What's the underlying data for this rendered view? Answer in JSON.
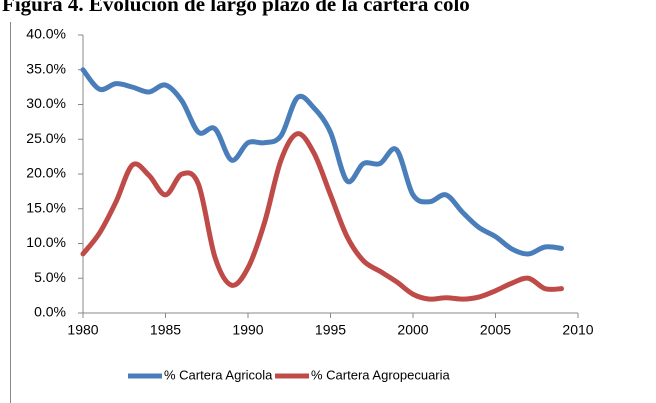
{
  "chart_data": {
    "type": "line",
    "title": "Figura 4. Evolución de largo plazo de la cartera colo",
    "x": [
      1980,
      1981,
      1982,
      1983,
      1984,
      1985,
      1986,
      1987,
      1988,
      1989,
      1990,
      1991,
      1992,
      1993,
      1994,
      1995,
      1996,
      1997,
      1998,
      1999,
      2000,
      2001,
      2002,
      2003,
      2004,
      2005,
      2006,
      2007,
      2008,
      2009
    ],
    "series": [
      {
        "name": "% Cartera Agricola",
        "color": "#4a7ebb",
        "values": [
          35,
          32.2,
          33,
          32.5,
          31.8,
          32.8,
          30.5,
          26,
          26.5,
          22,
          24.5,
          24.5,
          25.5,
          31,
          29.5,
          26,
          19,
          21.5,
          21.5,
          23.5,
          17,
          16,
          17,
          14.5,
          12.3,
          11,
          9.2,
          8.5,
          9.5,
          9.3
        ]
      },
      {
        "name": "% Cartera Agropecuaria",
        "color": "#be4b48",
        "values": [
          8.5,
          11.5,
          16,
          21.3,
          19.8,
          17,
          20,
          18.5,
          8,
          4,
          6.5,
          13,
          22,
          25.8,
          23,
          17,
          11,
          7.5,
          6,
          4.5,
          2.7,
          2,
          2.2,
          2,
          2.3,
          3.2,
          4.3,
          5,
          3.5,
          3.5
        ]
      }
    ],
    "xlim": [
      1980,
      2010
    ],
    "xticks": [
      1980,
      1985,
      1990,
      1995,
      2000,
      2005,
      2010
    ],
    "ylim": [
      0,
      40
    ],
    "yticks": [
      {
        "value": 0,
        "label": "0.0%"
      },
      {
        "value": 5,
        "label": "5.0%"
      },
      {
        "value": 10,
        "label": "10.0%"
      },
      {
        "value": 15,
        "label": "15.0%"
      },
      {
        "value": 20,
        "label": "20.0%"
      },
      {
        "value": 25,
        "label": "25.0%"
      },
      {
        "value": 30,
        "label": "30.0%"
      },
      {
        "value": 35,
        "label": "35.0%"
      },
      {
        "value": 40,
        "label": "40.0%"
      }
    ],
    "grid": false,
    "legend": "bottom"
  }
}
